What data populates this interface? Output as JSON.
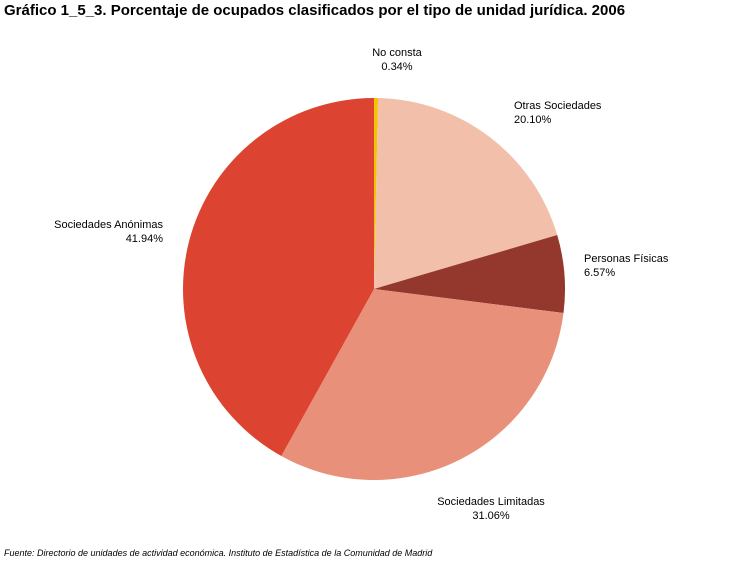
{
  "chart_data": {
    "type": "pie",
    "title": "Gráfico 1_5_3. Porcentaje de ocupados clasificados por el tipo de unidad jurídica. 2006",
    "start_angle_deg": 0,
    "direction": "clockwise",
    "slices": [
      {
        "label": "No consta",
        "value": 0.34,
        "value_label": "0.34%",
        "color": "#F5C400"
      },
      {
        "label": "Otras Sociedades",
        "value": 20.1,
        "value_label": "20.10%",
        "color": "#F2C0AA"
      },
      {
        "label": "Personas Físicas",
        "value": 6.57,
        "value_label": "6.57%",
        "color": "#94372C"
      },
      {
        "label": "Sociedades Limitadas",
        "value": 31.06,
        "value_label": "31.06%",
        "color": "#E8907A"
      },
      {
        "label": "Sociedades Anónimas",
        "value": 41.94,
        "value_label": "41.94%",
        "color": "#DC4330"
      }
    ]
  },
  "source": "Fuente: Directorio de unidades de actividad económica. Instituto de Estadística de la Comunidad de Madrid"
}
